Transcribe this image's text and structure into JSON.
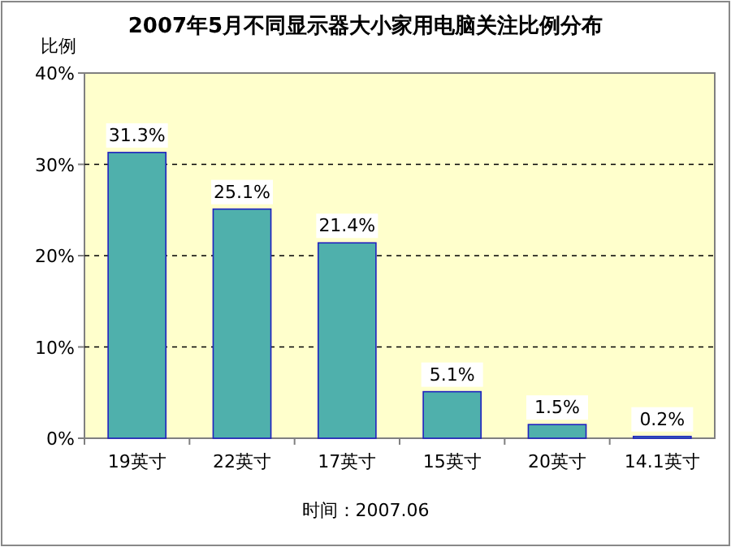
{
  "chart_data": {
    "type": "bar",
    "title": "2007年5月不同显示器大小家用电脑关注比例分布",
    "ylabel": "比例",
    "categories": [
      "19英寸",
      "22英寸",
      "17英寸",
      "15英寸",
      "20英寸",
      "14.1英寸"
    ],
    "values": [
      31.3,
      25.1,
      21.4,
      5.1,
      1.5,
      0.2
    ],
    "value_labels": [
      "31.3%",
      "25.1%",
      "21.4%",
      "5.1%",
      "1.5%",
      "0.2%"
    ],
    "color": "#4fb0ac",
    "ylim": [
      0,
      40
    ],
    "yticks": [
      {
        "value": 0,
        "label": "0%"
      },
      {
        "value": 10,
        "label": "10%"
      },
      {
        "value": 20,
        "label": "20%"
      },
      {
        "value": 30,
        "label": "30%"
      },
      {
        "value": 40,
        "label": "40%"
      }
    ],
    "grid": "y",
    "annotations": [
      "时间：2007.06"
    ]
  }
}
